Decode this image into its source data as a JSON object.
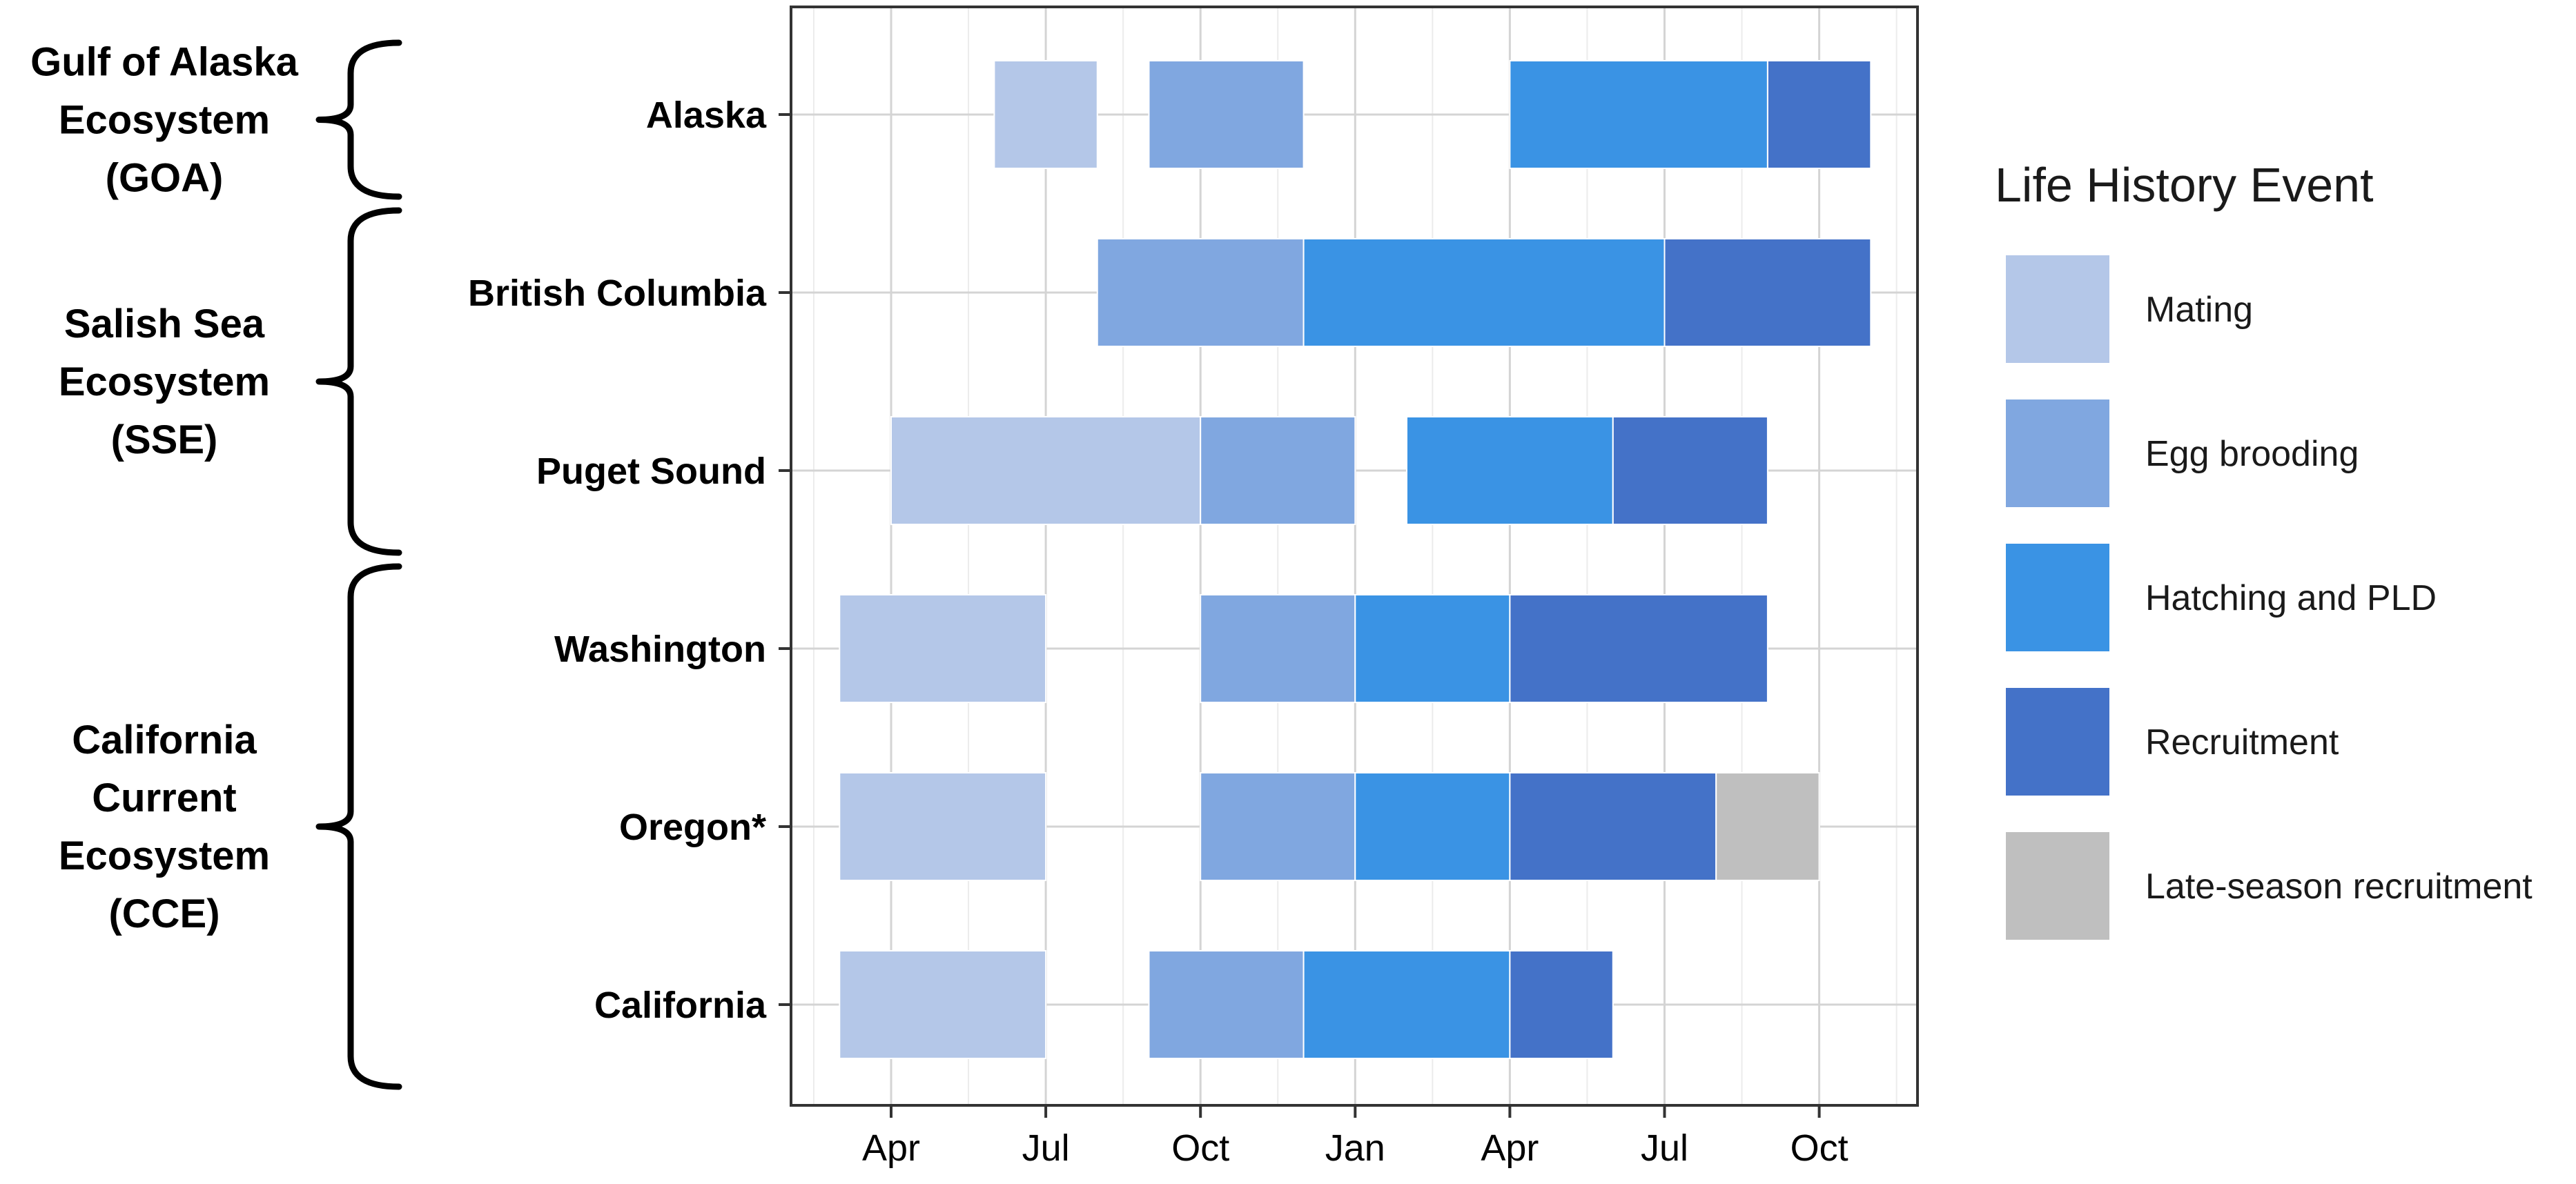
{
  "chart_data": {
    "type": "bar",
    "subtype": "gantt",
    "x_axis": {
      "tick_labels": [
        "Apr",
        "Jul",
        "Oct",
        "Jan",
        "Apr",
        "Jul",
        "Oct"
      ],
      "tick_month_index": [
        0,
        3,
        6,
        9,
        12,
        15,
        18
      ],
      "range_month_index": [
        -2,
        20
      ]
    },
    "grid": true,
    "legend_placement": "right",
    "legend": {
      "title": "Life History Event",
      "items": [
        {
          "key": "mating",
          "label": "Mating",
          "color": "#b4c7e8"
        },
        {
          "key": "egg",
          "label": "Egg brooding",
          "color": "#80a7e0"
        },
        {
          "key": "hatch",
          "label": "Hatching and PLD",
          "color": "#3a93e4"
        },
        {
          "key": "recruit",
          "label": "Recruitment",
          "color": "#4472c8"
        },
        {
          "key": "late",
          "label": "Late-season recruitment",
          "color": "#bfbfbf"
        }
      ]
    },
    "rows": [
      {
        "label": "Alaska",
        "segments": [
          {
            "event": "mating",
            "start": 2,
            "end": 4
          },
          {
            "event": "egg",
            "start": 5,
            "end": 8
          },
          {
            "event": "hatch",
            "start": 12,
            "end": 17
          },
          {
            "event": "recruit",
            "start": 17,
            "end": 19
          }
        ]
      },
      {
        "label": "British Columbia",
        "segments": [
          {
            "event": "egg",
            "start": 4,
            "end": 8
          },
          {
            "event": "hatch",
            "start": 8,
            "end": 15
          },
          {
            "event": "recruit",
            "start": 15,
            "end": 19
          }
        ]
      },
      {
        "label": "Puget Sound",
        "segments": [
          {
            "event": "mating",
            "start": 0,
            "end": 6
          },
          {
            "event": "egg",
            "start": 6,
            "end": 9
          },
          {
            "event": "hatch",
            "start": 10,
            "end": 14
          },
          {
            "event": "recruit",
            "start": 14,
            "end": 17
          }
        ]
      },
      {
        "label": "Washington",
        "segments": [
          {
            "event": "mating",
            "start": -1,
            "end": 3
          },
          {
            "event": "egg",
            "start": 6,
            "end": 9
          },
          {
            "event": "hatch",
            "start": 9,
            "end": 12
          },
          {
            "event": "recruit",
            "start": 12,
            "end": 17
          }
        ]
      },
      {
        "label": "Oregon*",
        "segments": [
          {
            "event": "mating",
            "start": -1,
            "end": 3
          },
          {
            "event": "egg",
            "start": 6,
            "end": 9
          },
          {
            "event": "hatch",
            "start": 9,
            "end": 12
          },
          {
            "event": "recruit",
            "start": 12,
            "end": 16
          },
          {
            "event": "late",
            "start": 16,
            "end": 18
          }
        ]
      },
      {
        "label": "California",
        "segments": [
          {
            "event": "mating",
            "start": -1,
            "end": 3
          },
          {
            "event": "egg",
            "start": 5,
            "end": 8
          },
          {
            "event": "hatch",
            "start": 8,
            "end": 12
          },
          {
            "event": "recruit",
            "start": 12,
            "end": 14
          }
        ]
      }
    ],
    "ecosystems": [
      {
        "lines": [
          "Gulf of Alaska",
          "Ecosystem",
          "(GOA)"
        ],
        "rows": [
          "Alaska"
        ]
      },
      {
        "lines": [
          "Salish Sea",
          "Ecosystem",
          "(SSE)"
        ],
        "rows": [
          "British Columbia",
          "Puget Sound"
        ]
      },
      {
        "lines": [
          "California",
          "Current",
          "Ecosystem",
          "(CCE)"
        ],
        "rows": [
          "Washington",
          "Oregon*",
          "California"
        ]
      }
    ]
  }
}
